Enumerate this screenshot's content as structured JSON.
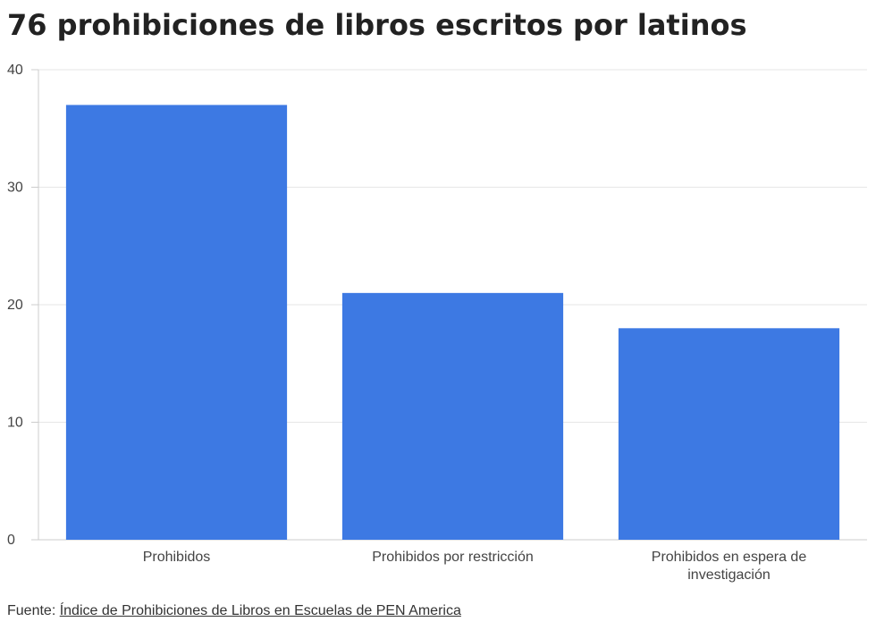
{
  "chart_data": {
    "type": "bar",
    "title": "76 prohibiciones de libros escritos por latinos",
    "categories": [
      [
        "Prohibidos"
      ],
      [
        "Prohibidos por restricción"
      ],
      [
        "Prohibidos en espera de",
        "investigación"
      ]
    ],
    "values": [
      37,
      21,
      18
    ],
    "ylim": [
      0,
      40
    ],
    "yticks": [
      0,
      10,
      20,
      30,
      40
    ],
    "grid": true,
    "bar_color": "#3d79e3",
    "grid_color": "#e6e6e6",
    "axis_color": "#cccccc"
  },
  "source": {
    "prefix": "Fuente: ",
    "link_text": "Índice de Prohibiciones de Libros en Escuelas de PEN America"
  }
}
